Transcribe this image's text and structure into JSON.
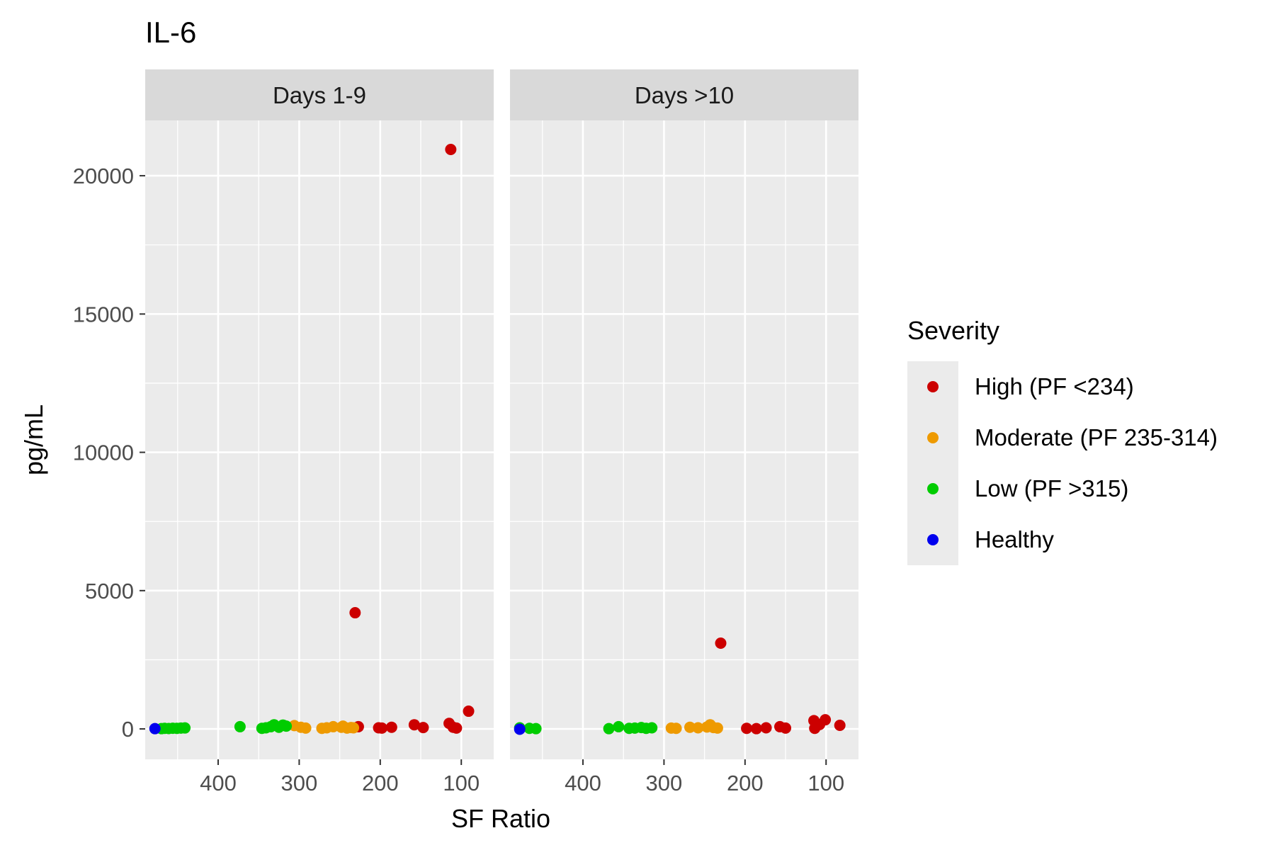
{
  "chart_data": {
    "type": "scatter",
    "title": "IL-6",
    "xlabel": "SF Ratio",
    "ylabel": "pg/mL",
    "x_reversed": true,
    "xlim": [
      490,
      60
    ],
    "ylim": [
      -1100,
      22000
    ],
    "x_ticks": [
      400,
      300,
      200,
      100
    ],
    "y_ticks": [
      0,
      5000,
      10000,
      15000,
      20000
    ],
    "grid": true,
    "legend": {
      "title": "Severity",
      "position": "right",
      "entries": [
        {
          "label": "High (PF <234)",
          "color": "#cc0000"
        },
        {
          "label": "Moderate (PF 235-314)",
          "color": "#ee9a00"
        },
        {
          "label": "Low (PF >315)",
          "color": "#00cc00"
        },
        {
          "label": "Healthy",
          "color": "#0000ee"
        }
      ]
    },
    "panels": [
      {
        "label": "Days 1-9",
        "series": [
          {
            "name": "High (PF <234)",
            "color": "#cc0000",
            "points": [
              [
                113,
                20950
              ],
              [
                231,
                4200
              ],
              [
                91,
                640
              ],
              [
                227,
                80
              ],
              [
                202,
                40
              ],
              [
                198,
                30
              ],
              [
                186,
                60
              ],
              [
                158,
                150
              ],
              [
                147,
                50
              ],
              [
                115,
                200
              ],
              [
                110,
                60
              ],
              [
                106,
                30
              ]
            ]
          },
          {
            "name": "Moderate (PF 235-314)",
            "color": "#ee9a00",
            "points": [
              [
                306,
                120
              ],
              [
                298,
                60
              ],
              [
                292,
                30
              ],
              [
                272,
                20
              ],
              [
                266,
                40
              ],
              [
                258,
                80
              ],
              [
                248,
                60
              ],
              [
                246,
                100
              ],
              [
                241,
                30
              ],
              [
                236,
                50
              ],
              [
                233,
                40
              ]
            ]
          },
          {
            "name": "Low (PF >315)",
            "color": "#00cc00",
            "points": [
              [
                470,
                10
              ],
              [
                466,
                20
              ],
              [
                461,
                15
              ],
              [
                456,
                25
              ],
              [
                451,
                20
              ],
              [
                446,
                30
              ],
              [
                441,
                35
              ],
              [
                373,
                80
              ],
              [
                346,
                20
              ],
              [
                341,
                40
              ],
              [
                335,
                80
              ],
              [
                331,
                150
              ],
              [
                325,
                60
              ],
              [
                320,
                140
              ],
              [
                316,
                100
              ]
            ]
          },
          {
            "name": "Healthy",
            "color": "#0000ee",
            "points": [
              [
                478,
                10
              ]
            ]
          }
        ]
      },
      {
        "label": "Days >10",
        "series": [
          {
            "name": "High (PF <234)",
            "color": "#cc0000",
            "points": [
              [
                230,
                3100
              ],
              [
                198,
                20
              ],
              [
                186,
                10
              ],
              [
                174,
                40
              ],
              [
                157,
                80
              ],
              [
                150,
                30
              ],
              [
                115,
                300
              ],
              [
                114,
                20
              ],
              [
                108,
                160
              ],
              [
                101,
                330
              ],
              [
                83,
                130
              ]
            ]
          },
          {
            "name": "Moderate (PF 235-314)",
            "color": "#ee9a00",
            "points": [
              [
                291,
                30
              ],
              [
                285,
                20
              ],
              [
                268,
                60
              ],
              [
                258,
                40
              ],
              [
                247,
                70
              ],
              [
                243,
                150
              ],
              [
                239,
                50
              ],
              [
                234,
                30
              ]
            ]
          },
          {
            "name": "Low (PF >315)",
            "color": "#00cc00",
            "points": [
              [
                478,
                40
              ],
              [
                466,
                20
              ],
              [
                458,
                10
              ],
              [
                368,
                10
              ],
              [
                356,
                80
              ],
              [
                343,
                20
              ],
              [
                336,
                30
              ],
              [
                328,
                50
              ],
              [
                322,
                20
              ],
              [
                315,
                40
              ]
            ]
          },
          {
            "name": "Healthy",
            "color": "#0000ee",
            "points": [
              [
                478,
                -10
              ]
            ]
          }
        ]
      }
    ]
  }
}
